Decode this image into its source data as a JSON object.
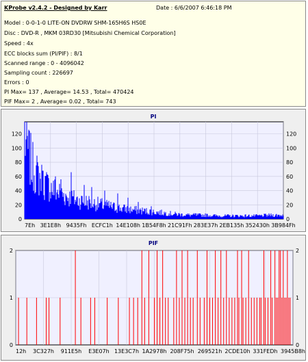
{
  "header": {
    "title": "KProbe v2.4.2 - Designed by Karr",
    "date": "Date : 6/6/2007 6:46:18 PM",
    "lines": [
      "Model : 0-0-1-0 LITE-ON DVDRW SHM-165H6S HS0E",
      "Disc : DVD-R , MKM 03RD30  [Mitsubishi Chemical Corporation]",
      "Speed : 4x",
      "ECC blocks sum (PI/PIF) : 8/1",
      "Scanned range : 0 - 4096042",
      "Sampling count : 226697",
      "Errors : 0",
      "PI Max= 137 , Average= 14.53 , Total= 470424",
      "PIF Max= 2 , Average= 0.02 , Total= 743"
    ]
  },
  "colors": {
    "pi_series": "#0000ff",
    "pif_series": "#ff0000",
    "plot_bg": "#f0f0ff",
    "title": "#00007f"
  },
  "chart_data": [
    {
      "type": "area",
      "title": "PI",
      "ylim": [
        0,
        137
      ],
      "yticks": [
        0,
        20,
        40,
        60,
        80,
        100,
        120
      ],
      "xticks": [
        "7Eh",
        "3E1E8h",
        "9435Fh",
        "ECFC1h",
        "14E108h",
        "1B54F8h",
        "21C91Fh",
        "283E37h",
        "2EB135h",
        "352430h",
        "3B984Fh"
      ],
      "x_range": [
        126,
        4096042
      ],
      "grid": true,
      "profile": [
        {
          "x": 0.0,
          "y": 128
        },
        {
          "x": 0.01,
          "y": 112
        },
        {
          "x": 0.02,
          "y": 95
        },
        {
          "x": 0.03,
          "y": 82
        },
        {
          "x": 0.05,
          "y": 68
        },
        {
          "x": 0.08,
          "y": 55
        },
        {
          "x": 0.12,
          "y": 44
        },
        {
          "x": 0.16,
          "y": 36
        },
        {
          "x": 0.2,
          "y": 30
        },
        {
          "x": 0.25,
          "y": 26
        },
        {
          "x": 0.3,
          "y": 22
        },
        {
          "x": 0.35,
          "y": 18
        },
        {
          "x": 0.4,
          "y": 15
        },
        {
          "x": 0.45,
          "y": 13
        },
        {
          "x": 0.5,
          "y": 11
        },
        {
          "x": 0.55,
          "y": 9
        },
        {
          "x": 0.6,
          "y": 7
        },
        {
          "x": 0.65,
          "y": 6
        },
        {
          "x": 0.7,
          "y": 6
        },
        {
          "x": 0.75,
          "y": 5
        },
        {
          "x": 0.8,
          "y": 5
        },
        {
          "x": 0.85,
          "y": 5
        },
        {
          "x": 0.9,
          "y": 5
        },
        {
          "x": 0.95,
          "y": 6
        },
        {
          "x": 1.0,
          "y": 6
        }
      ],
      "peaks": [
        {
          "x": 0.0,
          "y": 137
        },
        {
          "x": 0.07,
          "y": 68
        },
        {
          "x": 0.09,
          "y": 62
        },
        {
          "x": 0.12,
          "y": 60
        },
        {
          "x": 0.14,
          "y": 56
        },
        {
          "x": 0.18,
          "y": 66
        },
        {
          "x": 0.23,
          "y": 48
        },
        {
          "x": 0.26,
          "y": 45
        },
        {
          "x": 0.31,
          "y": 40
        },
        {
          "x": 0.36,
          "y": 36
        },
        {
          "x": 0.4,
          "y": 30
        },
        {
          "x": 0.44,
          "y": 24
        },
        {
          "x": 0.49,
          "y": 18
        },
        {
          "x": 0.66,
          "y": 8
        }
      ]
    },
    {
      "type": "bar",
      "title": "PIF",
      "ylim": [
        0,
        2
      ],
      "yticks": [
        0,
        1,
        2
      ],
      "xticks": [
        "12h",
        "3C327h",
        "911E5h",
        "E3E07h",
        "13E3C7h",
        "1A2978h",
        "208F75h",
        "269521h",
        "2CDE10h",
        "331FEDh",
        "3945B8h"
      ],
      "x_range": [
        18,
        4096042
      ],
      "grid": true,
      "events_value_2": [
        0.215,
        0.455,
        0.48,
        0.51,
        0.53,
        0.58,
        0.6,
        0.62,
        0.655,
        0.69,
        0.72,
        0.74,
        0.76,
        0.8,
        0.815,
        0.84,
        0.895,
        0.92,
        0.935,
        0.95,
        0.955,
        0.965,
        0.98
      ],
      "events_value_1": [
        0.01,
        0.04,
        0.075,
        0.11,
        0.12,
        0.16,
        0.235,
        0.27,
        0.285,
        0.33,
        0.37,
        0.41,
        0.425,
        0.44,
        0.465,
        0.5,
        0.52,
        0.54,
        0.55,
        0.57,
        0.59,
        0.61,
        0.63,
        0.64,
        0.665,
        0.68,
        0.7,
        0.71,
        0.73,
        0.75,
        0.77,
        0.78,
        0.79,
        0.805,
        0.82,
        0.83,
        0.85,
        0.86,
        0.87,
        0.88,
        0.885,
        0.9,
        0.91,
        0.925,
        0.94,
        0.945,
        0.96,
        0.97,
        0.975,
        0.985,
        0.99
      ]
    }
  ]
}
